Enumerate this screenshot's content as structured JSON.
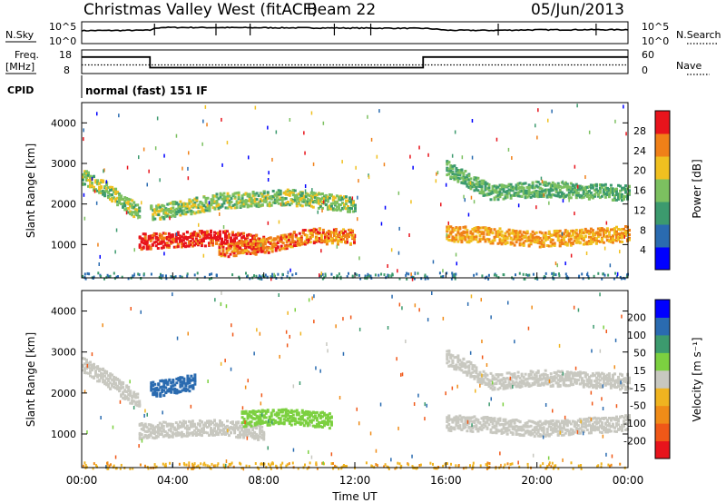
{
  "header": {
    "title": "Christmas Valley West (fitACF)",
    "beam": "Beam 22",
    "date": "05/Jun/2013"
  },
  "top_panels": {
    "nsky_label": "N.Sky",
    "nsearch_label": "N.Search",
    "nsky_ticks": [
      "10^5",
      "10^0"
    ],
    "nsearch_ticks": [
      "10^5",
      "10^0"
    ],
    "freq_label_1": "Freq.",
    "freq_label_2": "[MHz]",
    "freq_ticks": [
      "18",
      "8"
    ],
    "nave_label": "Nave",
    "nave_ticks": [
      "60",
      "0"
    ],
    "cpid_label": "CPID",
    "cpid_text": "normal (fast) 151 IF"
  },
  "chart_data": [
    {
      "type": "line",
      "title": "N.Sky / N.Search",
      "x_unit": "hours UT",
      "x": [
        0,
        3,
        3.5,
        6,
        8,
        12,
        15,
        16,
        18,
        20,
        24
      ],
      "series": [
        {
          "name": "N.Sky",
          "values": [
            1200,
            1500,
            9000,
            8000,
            7500,
            6000,
            5000,
            1500,
            1400,
            2000,
            2200
          ]
        }
      ],
      "ylim": [
        1,
        100000
      ],
      "log_scale": true
    },
    {
      "type": "line",
      "title": "Freq. / Nave",
      "x_unit": "hours UT",
      "series": [
        {
          "name": "Freq.",
          "x": [
            0,
            3,
            3,
            15,
            15,
            24
          ],
          "values": [
            15,
            15,
            10.5,
            10.5,
            15,
            15
          ]
        },
        {
          "name": "Nave",
          "x": [
            0,
            24
          ],
          "values": [
            22,
            22
          ]
        }
      ],
      "ylim_left": [
        8,
        18
      ],
      "ylim_right": [
        0,
        60
      ]
    },
    {
      "type": "heatmap",
      "panel": "power",
      "ylabel": "Slant Range [km]",
      "ylim": [
        180,
        4500
      ],
      "yticks": [
        "4000",
        "3000",
        "2000",
        "1000"
      ],
      "xlim": [
        0,
        24
      ],
      "colorbar": {
        "label": "Power [dB]",
        "ticks": [
          "28",
          "24",
          "20",
          "16",
          "12",
          "8",
          "4"
        ],
        "colors": [
          "#0000ff",
          "#2a6bb0",
          "#3c9a6e",
          "#7cc060",
          "#f0c020",
          "#f08018",
          "#e8141c"
        ]
      },
      "bands": [
        {
          "t": [
            0,
            1,
            2.5
          ],
          "r": [
            2700,
            2400,
            1800
          ],
          "p": 14
        },
        {
          "t": [
            2.5,
            4,
            6,
            8
          ],
          "r": [
            1100,
            1150,
            1200,
            1050
          ],
          "p": 26
        },
        {
          "t": [
            6,
            8,
            10,
            12
          ],
          "r": [
            900,
            1000,
            1250,
            1200
          ],
          "p": 22
        },
        {
          "t": [
            3,
            6,
            9,
            12
          ],
          "r": [
            1800,
            2100,
            2200,
            2000
          ],
          "p": 14
        },
        {
          "t": [
            16,
            18,
            20,
            24
          ],
          "r": [
            1300,
            1250,
            1150,
            1300
          ],
          "p": 20
        },
        {
          "t": [
            16,
            18,
            20,
            24
          ],
          "r": [
            2900,
            2300,
            2400,
            2300
          ],
          "p": 12
        }
      ]
    },
    {
      "type": "heatmap",
      "panel": "velocity",
      "ylabel": "Slant Range [km]",
      "xlabel": "Time UT",
      "ylim": [
        180,
        4500
      ],
      "yticks": [
        "4000",
        "3000",
        "2000",
        "1000"
      ],
      "xlim": [
        0,
        24
      ],
      "xticks": [
        "00:00",
        "04:00",
        "08:00",
        "12:00",
        "16:00",
        "20:00",
        "00:00"
      ],
      "colorbar": {
        "label": "Velocity [m s⁻¹]",
        "ticks": [
          "200",
          "100",
          "50",
          "15",
          "-15",
          "-50",
          "-100",
          "-200"
        ],
        "colors": [
          "#e8141c",
          "#f05818",
          "#f08c18",
          "#f0b420",
          "#c8c8c0",
          "#7cd040",
          "#3c9a6e",
          "#2a6bb0",
          "#0000ff"
        ]
      },
      "bands": [
        {
          "t": [
            0,
            1,
            2.5
          ],
          "r": [
            2700,
            2400,
            1800
          ],
          "v": 0
        },
        {
          "t": [
            2.5,
            4,
            6,
            8
          ],
          "r": [
            1100,
            1150,
            1200,
            1050
          ],
          "v": 0
        },
        {
          "t": [
            7,
            9,
            11
          ],
          "r": [
            1400,
            1450,
            1350
          ],
          "v": 40
        },
        {
          "t": [
            3,
            5
          ],
          "r": [
            2100,
            2300
          ],
          "v": 150
        },
        {
          "t": [
            16,
            18,
            20,
            24
          ],
          "r": [
            1300,
            1250,
            1150,
            1300
          ],
          "v": 0
        },
        {
          "t": [
            16,
            18,
            20,
            24
          ],
          "r": [
            2900,
            2300,
            2400,
            2300
          ],
          "v": 0
        }
      ]
    }
  ]
}
